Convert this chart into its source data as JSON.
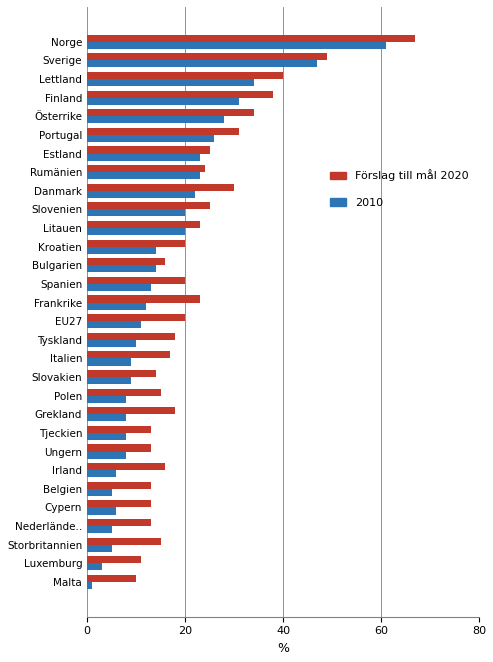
{
  "countries": [
    "Malta",
    "Luxemburg",
    "Storbritannien",
    "Nederlände..",
    "Cypern",
    "Belgien",
    "Irland",
    "Ungern",
    "Tjeckien",
    "Grekland",
    "Polen",
    "Slovakien",
    "Italien",
    "Tyskland",
    "EU27",
    "Frankrike",
    "Spanien",
    "Bulgarien",
    "Kroatien",
    "Litauen",
    "Slovenien",
    "Danmark",
    "Rumänien",
    "Estland",
    "Portugal",
    "Österrike",
    "Finland",
    "Lettland",
    "Sverige",
    "Norge"
  ],
  "red_values": [
    10,
    11,
    15,
    13,
    13,
    13,
    16,
    13,
    13,
    18,
    15,
    14,
    17,
    18,
    20,
    23,
    20,
    16,
    20,
    23,
    25,
    30,
    24,
    25,
    31,
    34,
    38,
    40,
    49,
    67
  ],
  "blue_values": [
    1,
    3,
    5,
    5,
    6,
    5,
    6,
    8,
    8,
    8,
    8,
    9,
    9,
    10,
    11,
    12,
    13,
    14,
    14,
    20,
    20,
    22,
    23,
    23,
    26,
    28,
    31,
    34,
    47,
    61
  ],
  "red_color": "#C0392B",
  "blue_color": "#2E75B6",
  "xlabel": "%",
  "xlim": [
    0,
    80
  ],
  "xticks": [
    0,
    20,
    40,
    60,
    80
  ],
  "legend_red": "Förslag till mål 2020",
  "legend_blue": "2010",
  "bar_height": 0.38,
  "figsize": [
    4.93,
    6.62
  ],
  "dpi": 100
}
